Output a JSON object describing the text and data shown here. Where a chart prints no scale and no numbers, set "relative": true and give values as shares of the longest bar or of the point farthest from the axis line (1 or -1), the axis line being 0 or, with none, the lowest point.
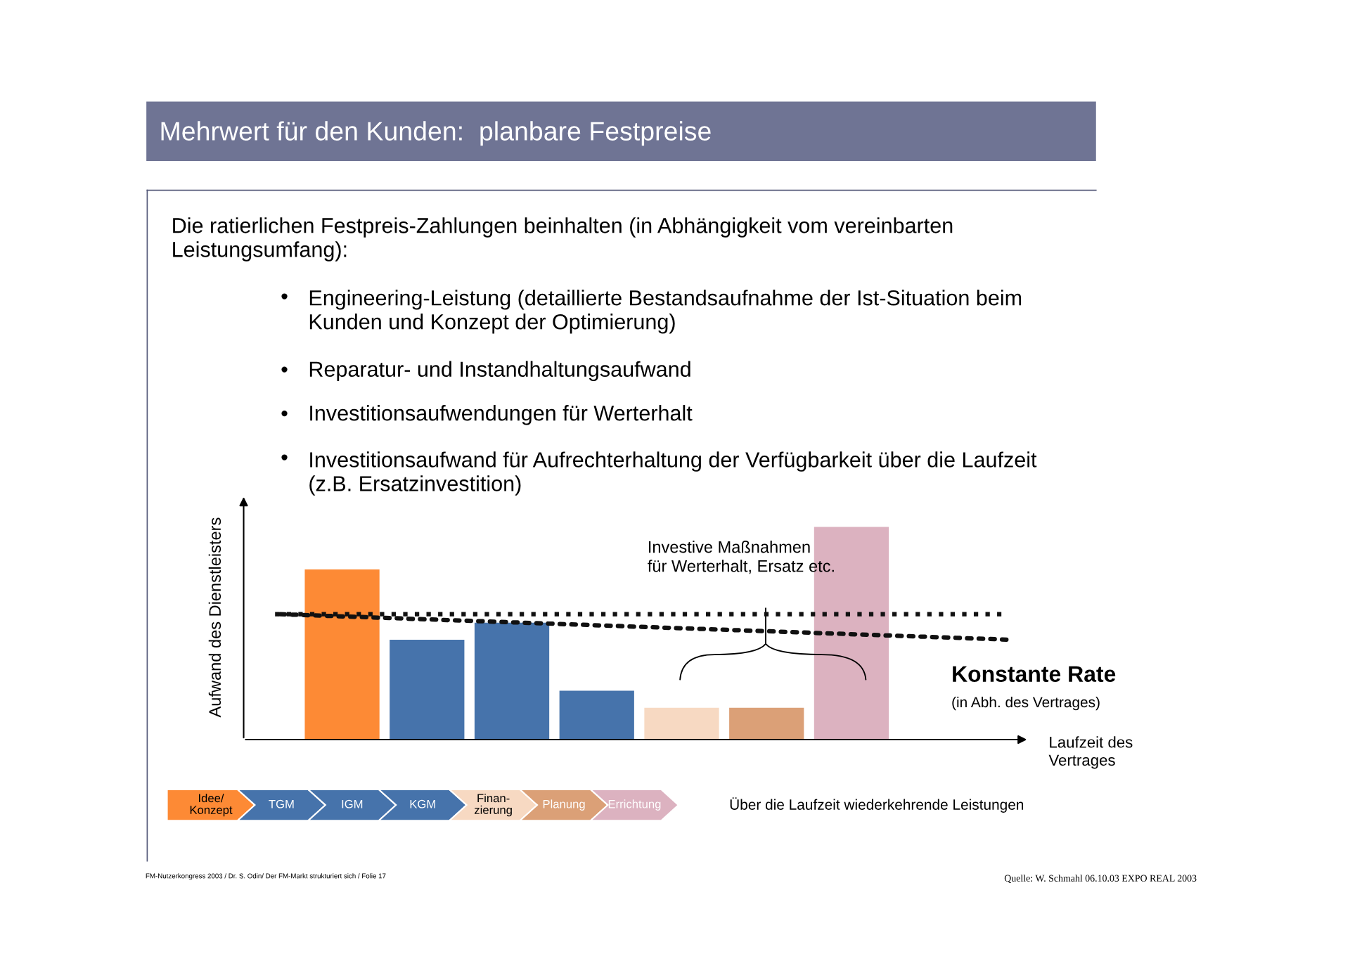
{
  "chart_data": {
    "type": "bar",
    "relative": true,
    "title": "Mehrwert für den Kunden:  planbare Festpreise",
    "ylabel": "Aufwand des Dienstleisters",
    "categories": [
      null,
      null,
      null,
      null,
      null,
      null,
      null
    ],
    "values": [
      0.8,
      0.47,
      0.55,
      0.23,
      0.15,
      0.15,
      1.0
    ],
    "colors": [
      "#fd8a35",
      "#4673ab",
      "#4673ab",
      "#4673ab",
      "#f7d9c2",
      "#dba077",
      "#dcb2c0"
    ],
    "ref_lines": [
      {
        "axis": "y",
        "value": 0.59,
        "label": "Konstante Rate",
        "color": "#111111",
        "line_style": "dotted"
      }
    ],
    "annotations": [
      "Die ratierlichen Festpreis-Zahlungen beinhalten (in Abhängigkeit vom vereinbarten\nLeistungsumfang):",
      "Engineering-Leistung (detaillierte Bestandsaufnahme der Ist-Situation beim\nKunden und Konzept der Optimierung)",
      "Reparatur- und Instandhaltungsaufwand",
      "Investitionsaufwendungen für Werterhalt",
      "Investitionsaufwand für Aufrechterhaltung der Verfügbarkeit über die Laufzeit\n(z.B. Ersatzinvestition)",
      "Investive Maßnahmen\nfür Werterhalt, Ersatz etc.",
      "(in Abh. des Vertrages)",
      "Über die Laufzeit wiederkehrende Leistungen",
      "FM-Nutzerkongress 2003 / Dr. S. Odin/ Der FM-Markt strukturiert sich / Folie 17",
      "Quelle: W. Schmahl 06.10.03 EXPO REAL 2003",
      "Laufzeit des\nVertrages",
      "•",
      "•",
      "•",
      "•",
      "Idee/\nKonzept",
      "TGM",
      "IGM",
      "KGM",
      "Finan-\nzierung",
      "Planung",
      "Errichtung"
    ]
  }
}
